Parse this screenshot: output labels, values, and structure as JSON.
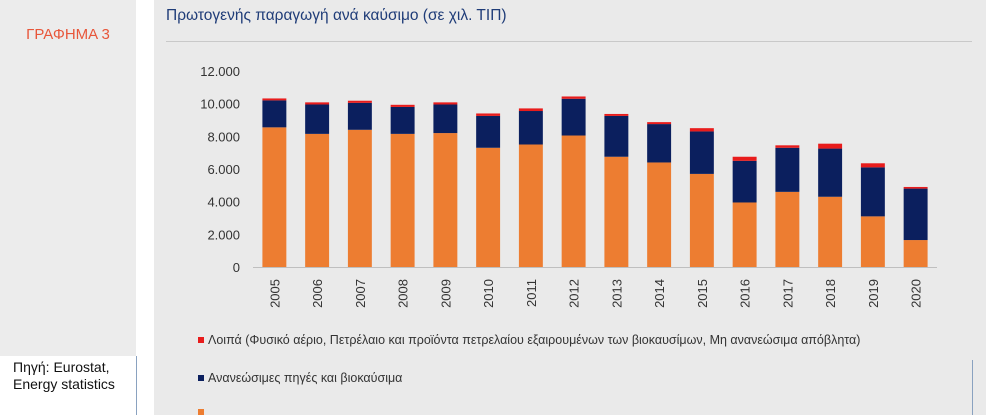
{
  "figure_label": "ΓΡΑΦΗΜΑ 3",
  "source": {
    "line1": "Πηγή: Eurostat,",
    "line2": "Energy statistics"
  },
  "colors": {
    "orange": "#ed7d31",
    "navy": "#0b1f5e",
    "red": "#e81c1c",
    "title": "#1f3c78"
  },
  "chart_data": {
    "type": "bar",
    "stacked": true,
    "title": "Πρωτογενής παραγωγή ανά καύσιμο (σε χιλ. ΤΙΠ)",
    "xlabel": "",
    "ylabel": "",
    "ylim": [
      0,
      12000
    ],
    "yticks": [
      "0",
      "2.000",
      "4.000",
      "6.000",
      "8.000",
      "10.000",
      "12.000"
    ],
    "categories": [
      "2005",
      "2006",
      "2007",
      "2008",
      "2009",
      "2010",
      "2011",
      "2012",
      "2013",
      "2014",
      "2015",
      "2016",
      "2017",
      "2018",
      "2019",
      "2020"
    ],
    "series": [
      {
        "name": "",
        "color": "#ed7d31",
        "values": [
          8550,
          8150,
          8400,
          8150,
          8200,
          7300,
          7500,
          8050,
          6750,
          6400,
          5700,
          3950,
          4600,
          4300,
          3100,
          1650
        ]
      },
      {
        "name": "Ανανεώσιμες πηγές και βιοκαύσιμα",
        "color": "#0b1f5e",
        "values": [
          1650,
          1800,
          1650,
          1650,
          1750,
          1950,
          2050,
          2250,
          2500,
          2350,
          2600,
          2550,
          2700,
          2950,
          3000,
          3150
        ]
      },
      {
        "name": "Λοιπά (Φυσικό αέριο, Πετρέλαιο και προϊόντα πετρελαίου εξαιρουμένων των βιοκαυσίμων, Μη ανανεώσιμα απόβλητα)",
        "color": "#e81c1c",
        "values": [
          120,
          130,
          130,
          130,
          130,
          150,
          160,
          140,
          120,
          120,
          200,
          250,
          150,
          300,
          250,
          100
        ]
      }
    ],
    "legend_position": "bottom"
  }
}
